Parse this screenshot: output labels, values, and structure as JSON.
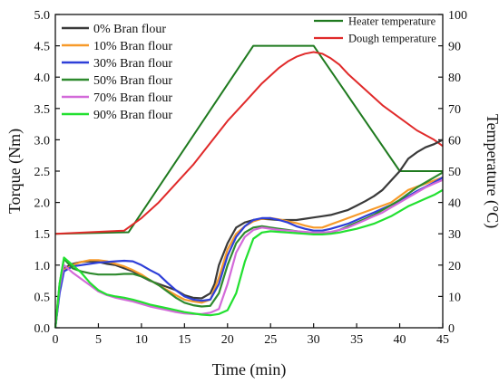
{
  "chart_data": {
    "type": "line",
    "xlabel": "Time (min)",
    "ylabel_left": "Torque (Nm)",
    "ylabel_right": "Temperature (°C)",
    "xlim": [
      0,
      45
    ],
    "ylim_left": [
      0,
      5
    ],
    "ylim_right": [
      0,
      100
    ],
    "x_ticks": [
      "0",
      "5",
      "10",
      "15",
      "20",
      "25",
      "30",
      "35",
      "40",
      "45"
    ],
    "y_left_ticks": [
      "0.0",
      "0.5",
      "1.0",
      "1.5",
      "2.0",
      "2.5",
      "3.0",
      "3.5",
      "4.0",
      "4.5",
      "5.0"
    ],
    "y_right_ticks": [
      "0",
      "10",
      "20",
      "30",
      "40",
      "50",
      "60",
      "70",
      "80",
      "90",
      "100"
    ],
    "grid": false,
    "legend_left_placement": "top-left",
    "legend_right_placement": "top-right",
    "torque_series": [
      {
        "name": "0% Bran flour",
        "color": "#3a3a3a",
        "x": [
          0,
          0.5,
          1,
          2,
          3,
          4,
          5,
          6,
          7,
          8,
          9,
          10,
          11,
          12,
          13,
          14,
          15,
          16,
          17,
          18,
          18.5,
          19,
          20,
          21,
          22,
          23,
          24,
          25,
          26,
          27,
          28,
          29,
          30,
          31,
          32,
          33,
          34,
          35,
          36,
          37,
          38,
          39,
          40,
          41,
          42,
          43,
          44,
          45
        ],
        "y": [
          0.0,
          0.6,
          0.95,
          1.02,
          1.05,
          1.06,
          1.05,
          1.02,
          1.0,
          0.95,
          0.9,
          0.82,
          0.75,
          0.7,
          0.65,
          0.6,
          0.52,
          0.48,
          0.47,
          0.55,
          0.7,
          1.0,
          1.35,
          1.6,
          1.68,
          1.72,
          1.74,
          1.73,
          1.72,
          1.72,
          1.72,
          1.74,
          1.76,
          1.78,
          1.8,
          1.84,
          1.88,
          1.95,
          2.02,
          2.1,
          2.2,
          2.35,
          2.5,
          2.7,
          2.8,
          2.88,
          2.93,
          3.0
        ]
      },
      {
        "name": "10% Bran flour",
        "color": "#f79a2a",
        "x": [
          0,
          0.5,
          1,
          2,
          3,
          4,
          5,
          6,
          7,
          8,
          9,
          10,
          11,
          12,
          13,
          14,
          15,
          16,
          17,
          18,
          19,
          20,
          21,
          22,
          23,
          24,
          25,
          26,
          27,
          28,
          29,
          30,
          31,
          32,
          33,
          34,
          35,
          36,
          37,
          38,
          39,
          40,
          41,
          42,
          43,
          44,
          45
        ],
        "y": [
          0.0,
          0.6,
          0.92,
          1.0,
          1.05,
          1.08,
          1.08,
          1.06,
          1.02,
          0.98,
          0.92,
          0.85,
          0.76,
          0.68,
          0.6,
          0.52,
          0.45,
          0.42,
          0.4,
          0.45,
          0.8,
          1.25,
          1.5,
          1.62,
          1.7,
          1.74,
          1.75,
          1.73,
          1.7,
          1.67,
          1.63,
          1.6,
          1.6,
          1.65,
          1.7,
          1.75,
          1.8,
          1.85,
          1.9,
          1.95,
          2.0,
          2.1,
          2.2,
          2.25,
          2.3,
          2.35,
          2.4
        ]
      },
      {
        "name": "30% Bran flour",
        "color": "#2e3fd8",
        "x": [
          0,
          0.5,
          1,
          2,
          3,
          4,
          5,
          6,
          7,
          8,
          9,
          10,
          11,
          12,
          13,
          14,
          15,
          16,
          17,
          18,
          19,
          20,
          21,
          22,
          23,
          24,
          25,
          26,
          27,
          28,
          29,
          30,
          31,
          32,
          33,
          34,
          35,
          36,
          37,
          38,
          39,
          40,
          41,
          42,
          43,
          44,
          45
        ],
        "y": [
          0.0,
          0.55,
          0.9,
          0.98,
          1.0,
          1.02,
          1.04,
          1.05,
          1.06,
          1.07,
          1.06,
          1.0,
          0.92,
          0.85,
          0.72,
          0.6,
          0.5,
          0.45,
          0.43,
          0.45,
          0.7,
          1.15,
          1.45,
          1.62,
          1.72,
          1.75,
          1.75,
          1.72,
          1.68,
          1.62,
          1.58,
          1.55,
          1.55,
          1.58,
          1.62,
          1.66,
          1.72,
          1.78,
          1.84,
          1.9,
          1.96,
          2.02,
          2.1,
          2.18,
          2.25,
          2.32,
          2.4
        ]
      },
      {
        "name": "50% Bran flour",
        "color": "#2e8a2e",
        "x": [
          0,
          0.5,
          1,
          2,
          3,
          4,
          5,
          6,
          7,
          8,
          9,
          10,
          11,
          12,
          13,
          14,
          15,
          16,
          17,
          18,
          19,
          20,
          21,
          22,
          23,
          24,
          25,
          26,
          27,
          28,
          29,
          30,
          31,
          32,
          33,
          34,
          35,
          36,
          37,
          38,
          39,
          40,
          41,
          42,
          43,
          44,
          45
        ],
        "y": [
          0.0,
          0.7,
          1.1,
          0.95,
          0.9,
          0.87,
          0.85,
          0.85,
          0.85,
          0.86,
          0.86,
          0.82,
          0.76,
          0.68,
          0.58,
          0.48,
          0.4,
          0.36,
          0.34,
          0.35,
          0.55,
          1.0,
          1.35,
          1.52,
          1.6,
          1.62,
          1.6,
          1.58,
          1.56,
          1.54,
          1.52,
          1.5,
          1.5,
          1.52,
          1.56,
          1.62,
          1.68,
          1.74,
          1.8,
          1.88,
          1.96,
          2.04,
          2.14,
          2.24,
          2.32,
          2.4,
          2.48
        ]
      },
      {
        "name": "70% Bran flour",
        "color": "#d36ad9",
        "x": [
          0,
          0.5,
          1,
          2,
          3,
          4,
          5,
          6,
          7,
          8,
          9,
          10,
          11,
          12,
          13,
          14,
          15,
          16,
          17,
          18,
          19,
          20,
          21,
          22,
          23,
          24,
          25,
          26,
          27,
          28,
          29,
          30,
          31,
          32,
          33,
          34,
          35,
          36,
          37,
          38,
          39,
          40,
          41,
          42,
          43,
          44,
          45
        ],
        "y": [
          0.0,
          0.65,
          1.0,
          0.88,
          0.78,
          0.68,
          0.58,
          0.52,
          0.48,
          0.45,
          0.42,
          0.38,
          0.34,
          0.31,
          0.28,
          0.25,
          0.23,
          0.22,
          0.22,
          0.24,
          0.3,
          0.7,
          1.2,
          1.45,
          1.56,
          1.6,
          1.58,
          1.56,
          1.55,
          1.54,
          1.53,
          1.52,
          1.52,
          1.53,
          1.56,
          1.6,
          1.66,
          1.72,
          1.78,
          1.84,
          1.92,
          2.0,
          2.08,
          2.16,
          2.24,
          2.3,
          2.36
        ]
      },
      {
        "name": "90% Bran flour",
        "color": "#22e030",
        "x": [
          0,
          0.5,
          1,
          2,
          3,
          4,
          5,
          6,
          7,
          8,
          9,
          10,
          11,
          12,
          13,
          14,
          15,
          16,
          17,
          18,
          19,
          20,
          21,
          22,
          23,
          24,
          25,
          26,
          27,
          28,
          29,
          30,
          31,
          32,
          33,
          34,
          35,
          36,
          37,
          38,
          39,
          40,
          41,
          42,
          43,
          44,
          45
        ],
        "y": [
          0.0,
          0.7,
          1.12,
          1.0,
          0.88,
          0.72,
          0.6,
          0.53,
          0.5,
          0.48,
          0.45,
          0.41,
          0.37,
          0.34,
          0.31,
          0.28,
          0.25,
          0.23,
          0.21,
          0.2,
          0.22,
          0.28,
          0.55,
          1.05,
          1.42,
          1.52,
          1.54,
          1.53,
          1.52,
          1.51,
          1.5,
          1.49,
          1.49,
          1.5,
          1.52,
          1.55,
          1.58,
          1.62,
          1.66,
          1.72,
          1.78,
          1.86,
          1.94,
          2.0,
          2.06,
          2.12,
          2.2
        ]
      }
    ],
    "temperature_series": [
      {
        "name": "Heater temperature",
        "color": "#1f7a1f",
        "x": [
          0,
          8.5,
          23,
          30,
          40,
          45
        ],
        "y": [
          30,
          30.5,
          90,
          90,
          50,
          50
        ]
      },
      {
        "name": "Dough temperature",
        "color": "#e02a2a",
        "x": [
          0,
          8,
          9,
          10,
          12,
          14,
          16,
          18,
          20,
          22,
          24,
          26,
          27,
          28,
          29,
          30,
          31,
          32,
          33,
          34,
          36,
          38,
          40,
          42,
          44,
          45
        ],
        "y": [
          30,
          31,
          33,
          35,
          40,
          46,
          52,
          59,
          66,
          72,
          78,
          83,
          85,
          86.5,
          87.5,
          88,
          87.5,
          86,
          84,
          81,
          76,
          71,
          67,
          63,
          60,
          58
        ]
      }
    ]
  }
}
